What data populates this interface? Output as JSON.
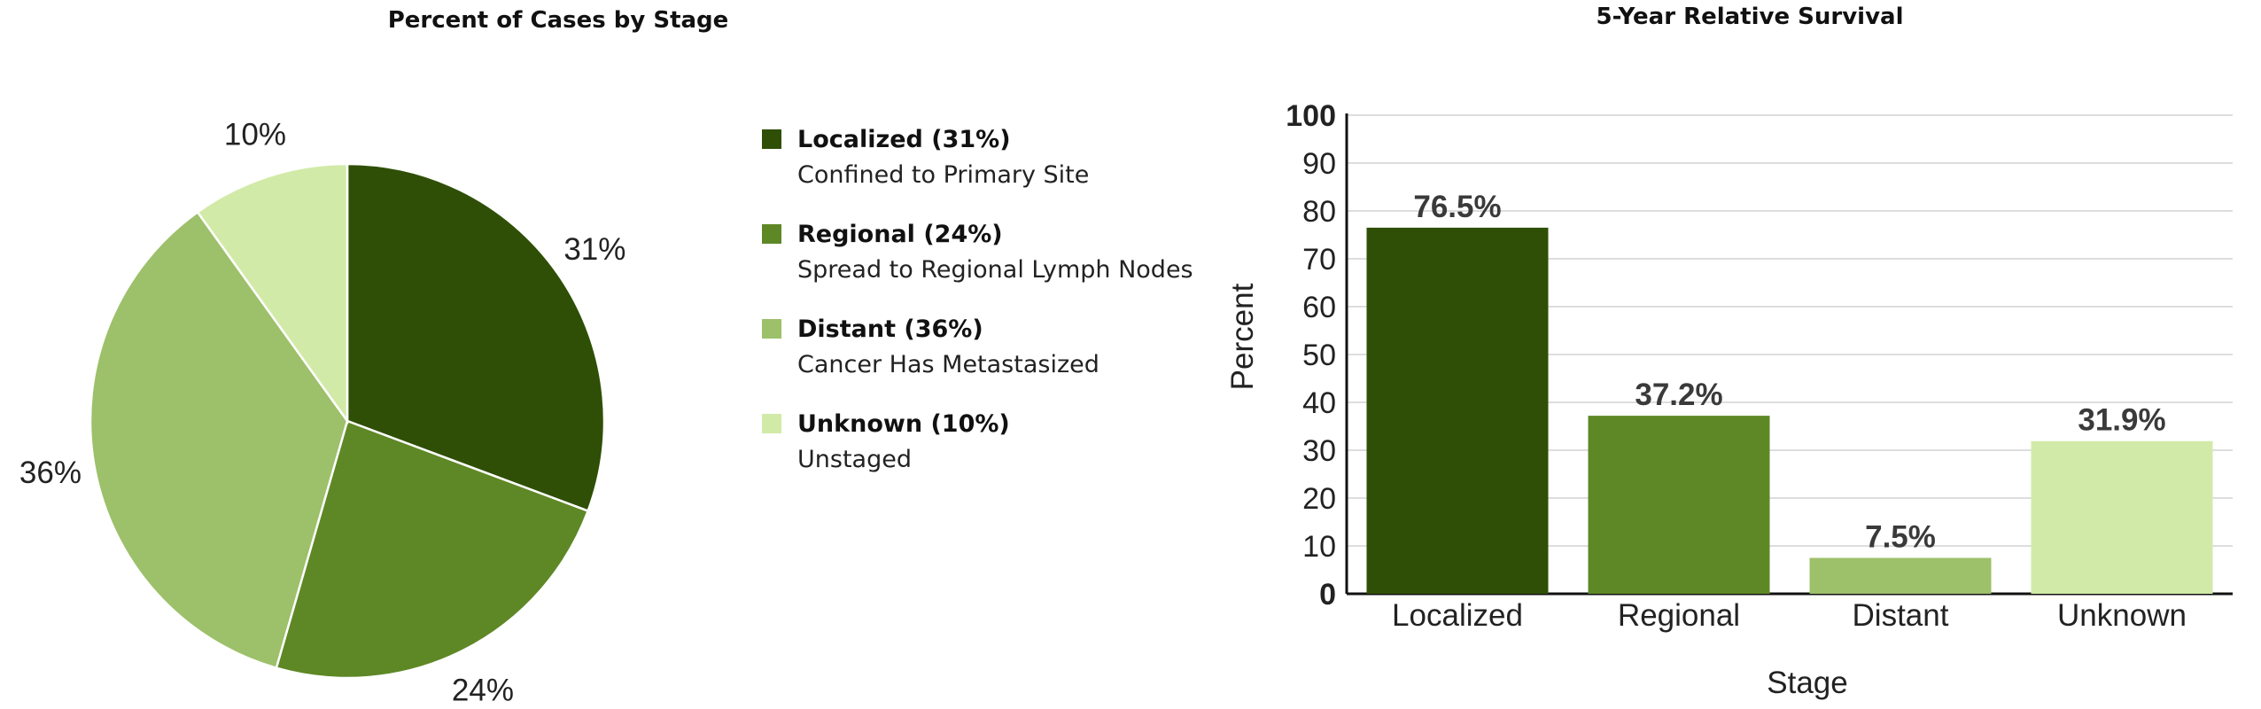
{
  "colors": {
    "localized": "#2f4f06",
    "regional": "#5e8826",
    "distant": "#9dc06a",
    "unknown": "#d2eaa8",
    "grid": "#dddddd",
    "axis": "#111111"
  },
  "legend": {
    "items": [
      {
        "label": "Localized (31%)",
        "desc": "Confined to Primary Site",
        "color": "#2f4f06"
      },
      {
        "label": "Regional (24%)",
        "desc": "Spread to Regional Lymph Nodes",
        "color": "#5e8826"
      },
      {
        "label": "Distant (36%)",
        "desc": "Cancer Has Metastasized",
        "color": "#9dc06a"
      },
      {
        "label": "Unknown (10%)",
        "desc": "Unstaged",
        "color": "#d2eaa8"
      }
    ]
  },
  "chart_data": [
    {
      "type": "pie",
      "title": "Percent of Cases by Stage",
      "categories": [
        "Localized",
        "Regional",
        "Distant",
        "Unknown"
      ],
      "values": [
        31,
        24,
        36,
        10
      ],
      "labels": [
        "31%",
        "24%",
        "36%",
        "10%"
      ],
      "colors": [
        "#2f4f06",
        "#5e8826",
        "#9dc06a",
        "#d2eaa8"
      ],
      "legend_position": "right"
    },
    {
      "type": "bar",
      "title": "5-Year Relative Survival",
      "categories": [
        "Localized",
        "Regional",
        "Distant",
        "Unknown"
      ],
      "values": [
        76.5,
        37.2,
        7.5,
        31.9
      ],
      "labels": [
        "76.5%",
        "37.2%",
        "7.5%",
        "31.9%"
      ],
      "colors": [
        "#2f4f06",
        "#5e8826",
        "#9dc06a",
        "#d2eaa8"
      ],
      "xlabel": "Stage",
      "ylabel": "Percent",
      "ylim": [
        0,
        100
      ],
      "yticks": [
        "0",
        "10",
        "20",
        "30",
        "40",
        "50",
        "60",
        "70",
        "80",
        "90",
        "100"
      ],
      "grid": true
    }
  ]
}
